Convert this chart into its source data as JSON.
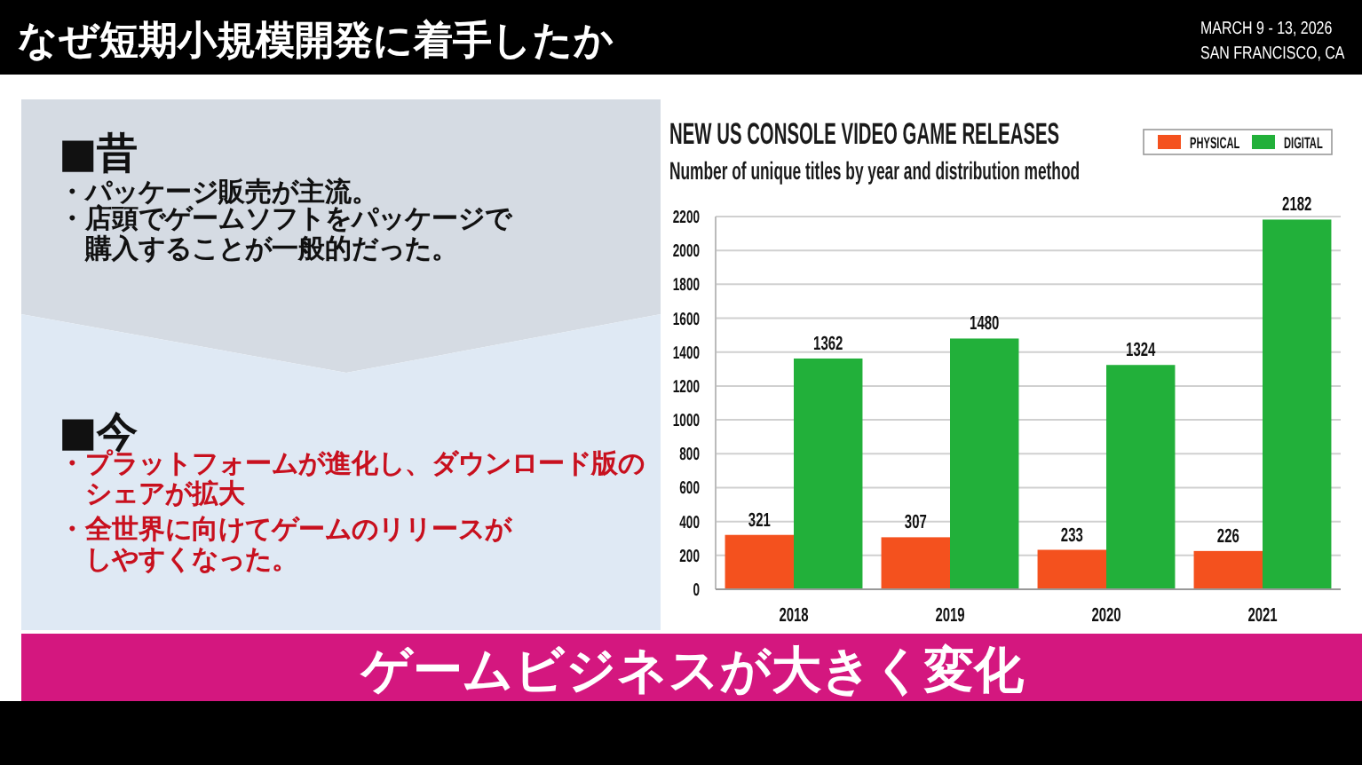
{
  "chart_data": {
    "type": "bar",
    "title": "NEW US CONSOLE VIDEO GAME RELEASES",
    "subtitle": "Number of unique titles by year and distribution method",
    "categories": [
      "2018",
      "2019",
      "2020",
      "2021"
    ],
    "series": [
      {
        "name": "PHYSICAL",
        "color": "#f4511e",
        "values": [
          321,
          307,
          233,
          226
        ]
      },
      {
        "name": "DIGITAL",
        "color": "#22b03a",
        "values": [
          1362,
          1480,
          1324,
          2182
        ]
      }
    ],
    "ylim": [
      0,
      2200
    ],
    "yticks": [
      0,
      200,
      400,
      600,
      800,
      1000,
      1200,
      1400,
      1600,
      1800,
      2000,
      2200
    ],
    "grid": "y",
    "legend": "top right",
    "data_labels": true,
    "annotations": [
      "なぜ短期小規模開発に着手したか",
      "MARCH 9 - 13, 2026",
      "SAN FRANCISCO, CA",
      "■昔",
      "・パッケージ販売が主流。",
      "・店頭でゲームソフトをパッケージで購入することが一般的だった。",
      "■今",
      "・プラットフォームが進化し、ダウンロード版のシェアが拡大",
      "・全世界に向けてゲームのリリースがしやすくなった。",
      "ゲームビジネスが大きく変化"
    ]
  }
}
